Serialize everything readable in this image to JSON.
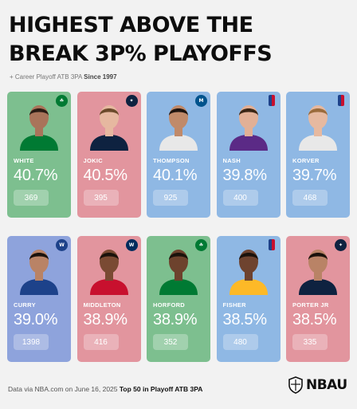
{
  "title_line1": "HIGHEST ABOVE THE",
  "title_line2": "BREAK 3P% PLAYOFFS",
  "subtitle_prefix": "+ Career Playoff ATB 3PA",
  "subtitle_bold": "Since 1997",
  "footer_prefix": "Data via NBA.com on June 16, 2025",
  "footer_bold": "Top 50 in Playoff ATB 3PA",
  "brand": "NBAU",
  "players": [
    {
      "name": "WHITE",
      "pct": "40.7%",
      "count": "369",
      "bg": "#7dbf8f",
      "team": "celtics",
      "logo_color": "#007a33",
      "logo_text": "☘",
      "jersey": "#007a33",
      "skin": "#a9745a",
      "hair": "#2a1c14"
    },
    {
      "name": "JOKIC",
      "pct": "40.5%",
      "count": "395",
      "bg": "#e2959e",
      "team": "nuggets",
      "logo_color": "#0e2240",
      "logo_text": "✦",
      "jersey": "#0e2240",
      "skin": "#e6b8a0",
      "hair": "#6b4a2b"
    },
    {
      "name": "THOMPSON",
      "pct": "40.1%",
      "count": "925",
      "bg": "#8fb8e4",
      "team": "mavericks",
      "logo_color": "#00538c",
      "logo_text": "M",
      "jersey": "#e8e8e8",
      "skin": "#c08a6a",
      "hair": "#1e1410"
    },
    {
      "name": "NASH",
      "pct": "39.8%",
      "count": "400",
      "bg": "#8fb8e4",
      "team": "nba",
      "logo_color": "#1d428a",
      "logo_text": "",
      "jersey": "#5b2a86",
      "skin": "#e2b096",
      "hair": "#3a2616"
    },
    {
      "name": "KORVER",
      "pct": "39.7%",
      "count": "468",
      "bg": "#8fb8e4",
      "team": "nba",
      "logo_color": "#1d428a",
      "logo_text": "",
      "jersey": "#e8e8e8",
      "skin": "#e6b9a0",
      "hair": "#9a6b3c"
    },
    {
      "name": "CURRY",
      "pct": "39.0%",
      "count": "1398",
      "bg": "#8ea3dc",
      "team": "warriors",
      "logo_color": "#1d428a",
      "logo_text": "W",
      "jersey": "#1d428a",
      "skin": "#b98366",
      "hair": "#1b120c"
    },
    {
      "name": "MIDDLETON",
      "pct": "38.9%",
      "count": "416",
      "bg": "#e2959e",
      "team": "wizards",
      "logo_color": "#002b5c",
      "logo_text": "W",
      "jersey": "#c8102e",
      "skin": "#7a4a33",
      "hair": "#1a120c"
    },
    {
      "name": "HORFORD",
      "pct": "38.9%",
      "count": "352",
      "bg": "#7dbf8f",
      "team": "celtics",
      "logo_color": "#007a33",
      "logo_text": "☘",
      "jersey": "#007a33",
      "skin": "#6d422d",
      "hair": "#1a120c"
    },
    {
      "name": "FISHER",
      "pct": "38.5%",
      "count": "480",
      "bg": "#8fb8e4",
      "team": "nba",
      "logo_color": "#1d428a",
      "logo_text": "",
      "jersey": "#fdb927",
      "skin": "#6e432f",
      "hair": "#1a120c"
    },
    {
      "name": "PORTER JR",
      "pct": "38.5%",
      "count": "335",
      "bg": "#e2959e",
      "team": "nuggets",
      "logo_color": "#0e2240",
      "logo_text": "✦",
      "jersey": "#0e2240",
      "skin": "#b98366",
      "hair": "#1b120c"
    }
  ]
}
